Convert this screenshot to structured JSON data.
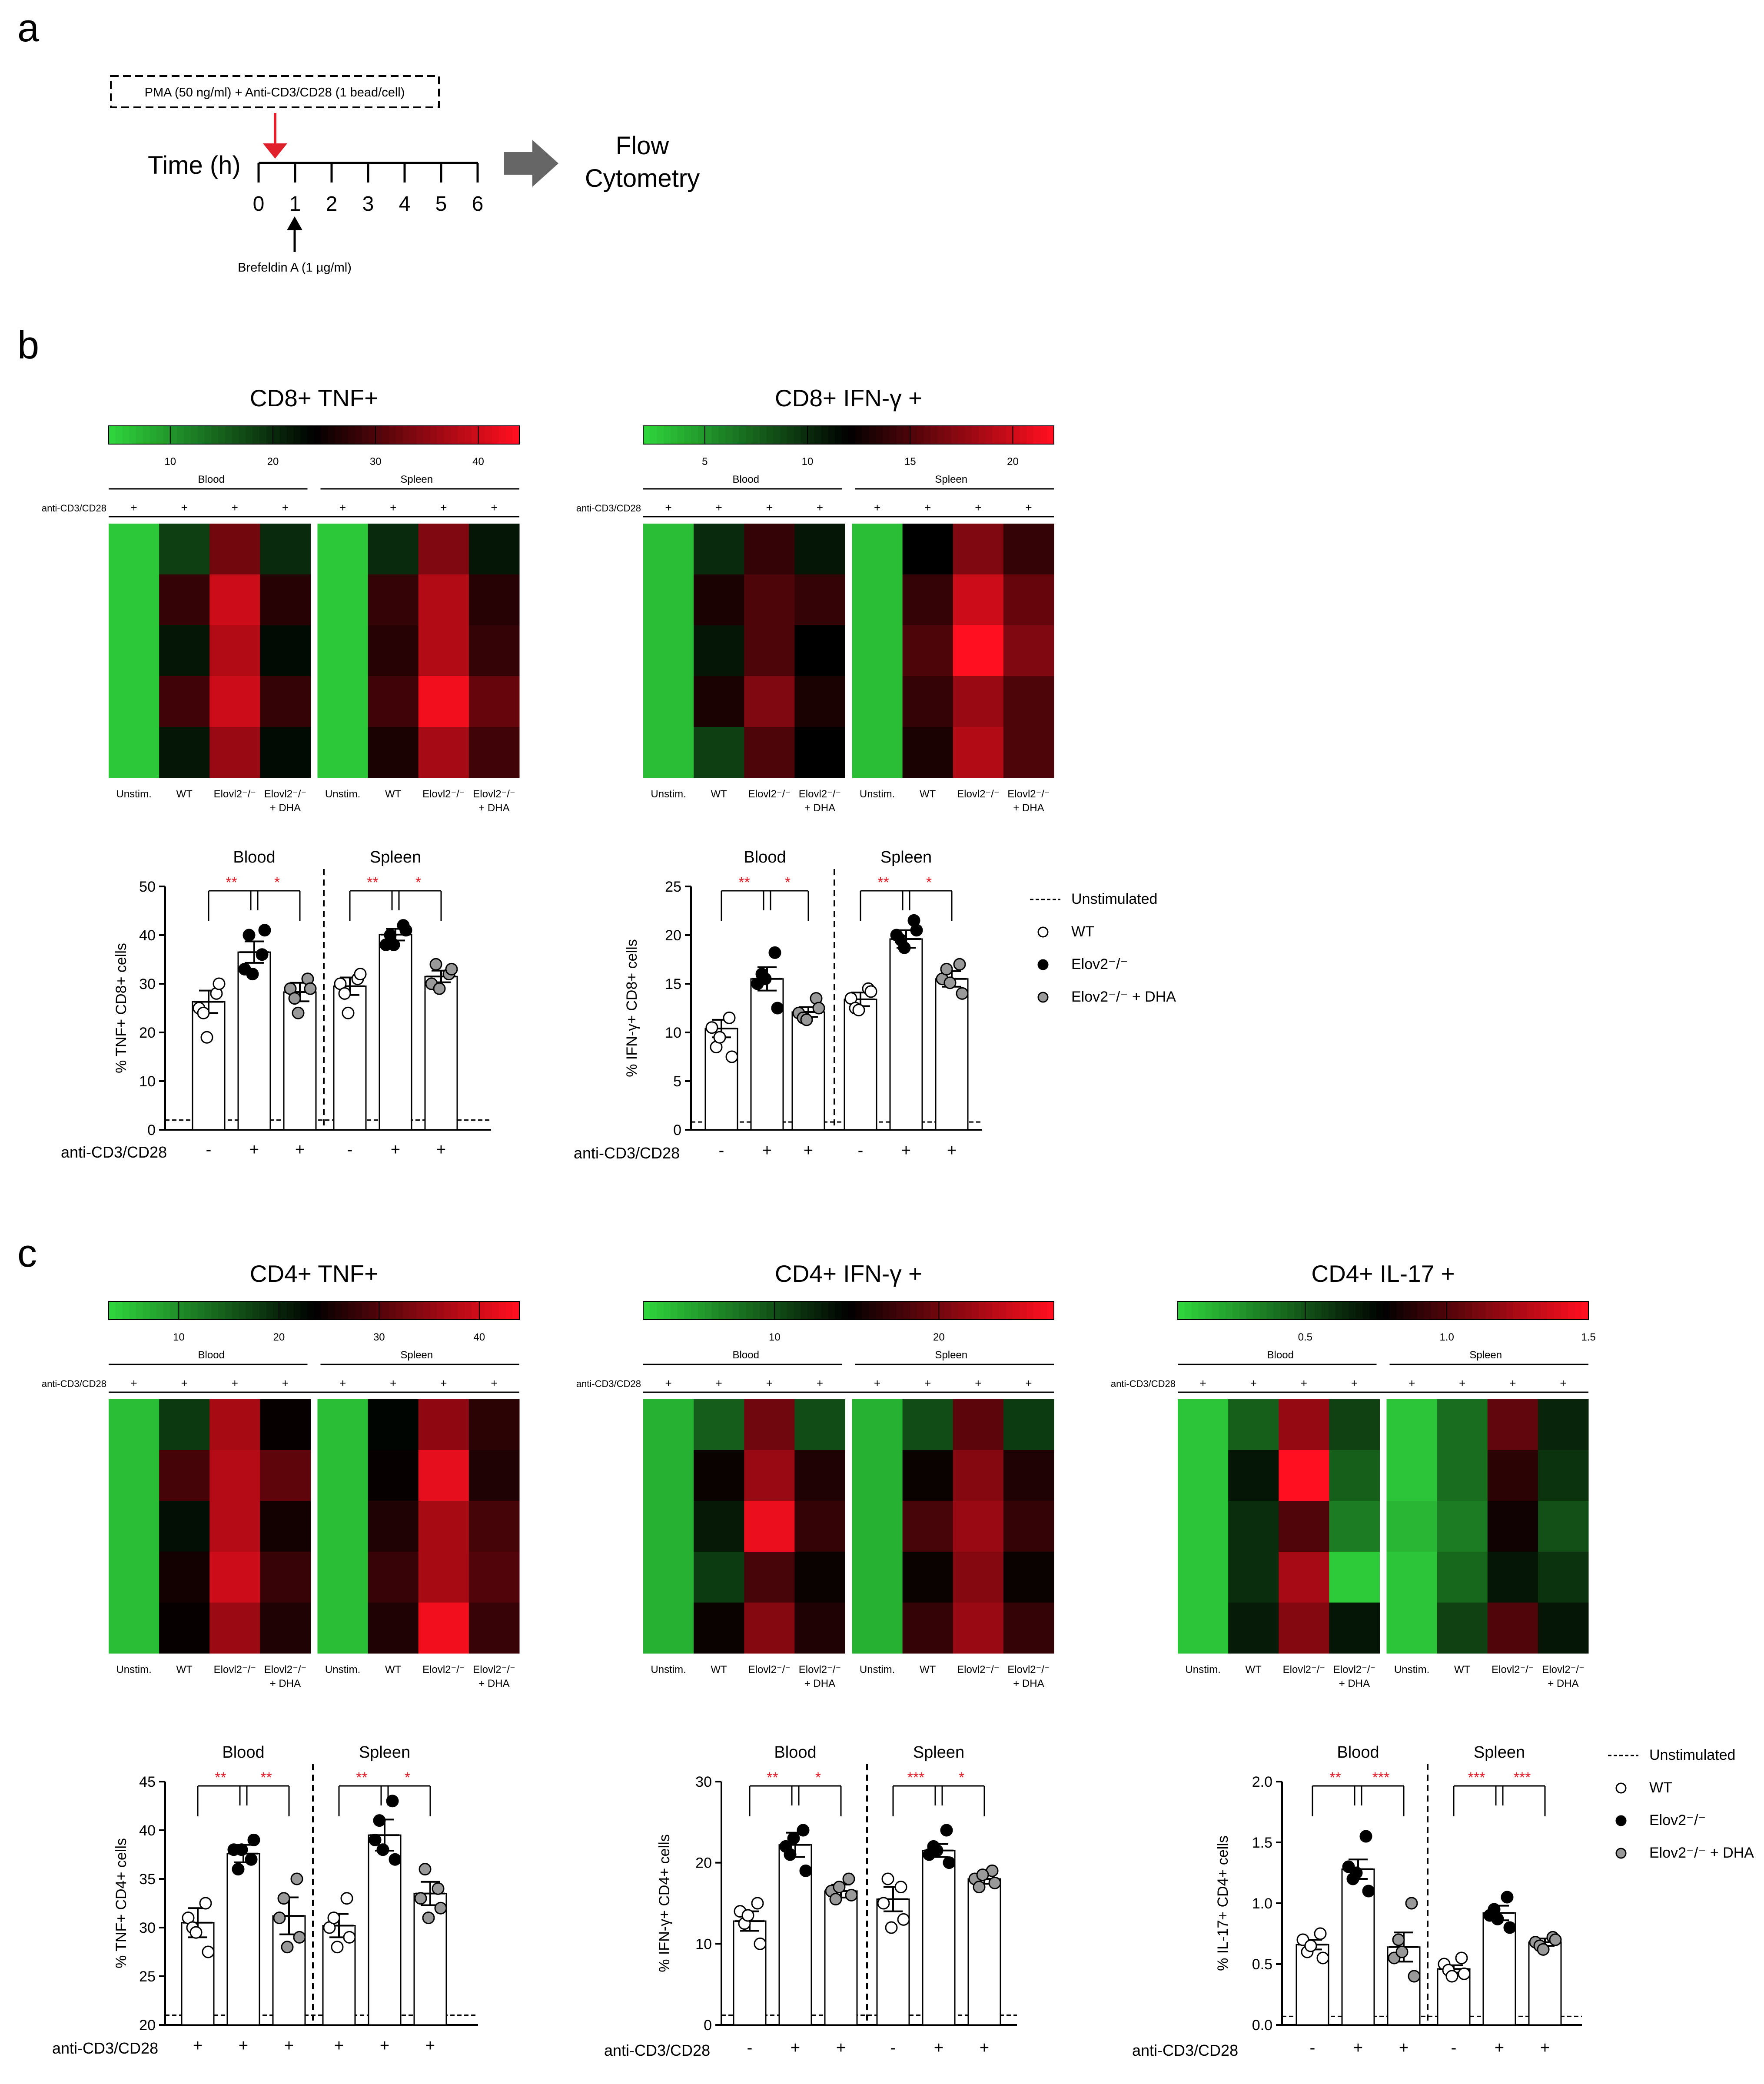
{
  "panels": {
    "a": "a",
    "b": "b",
    "c": "c"
  },
  "timeline": {
    "stim_label": "PMA (50 ng/ml) + Anti-CD3/CD28 (1 bead/cell)",
    "time_label": "Time (h)",
    "ticks": [
      "0",
      "1",
      "2",
      "3",
      "4",
      "5",
      "6"
    ],
    "brefeldin_label": "Brefeldin A (1 µg/ml)",
    "output_lines": [
      "Flow",
      "Cytometry"
    ],
    "colors": {
      "stim_arrow": "#e0202a",
      "process_arrow": "#666666"
    }
  },
  "heatmap_common": {
    "row_label": "anti-CD3/CD28",
    "signs": [
      "+",
      "+",
      "+",
      "+",
      "+",
      "+",
      "+",
      "+"
    ],
    "groups": [
      "Blood",
      "Spleen"
    ],
    "columns": [
      "Unstim.",
      "WT",
      "Elovl2⁻/⁻",
      "Elovl2⁻/⁻\n+ DHA",
      "Unstim.",
      "WT",
      "Elovl2⁻/⁻",
      "Elovl2⁻/⁻\n+ DHA"
    ],
    "colorscale": [
      "#2fd33c",
      "#000000",
      "#ff0f1f"
    ]
  },
  "bar_common": {
    "groups": [
      "Blood",
      "Spleen"
    ],
    "stim_label": "anti-CD3/CD28",
    "colors": {
      "sig": "#e0202a",
      "WT": "#ffffff",
      "KO": "#000000",
      "DHA": "#999999"
    }
  },
  "legends": {
    "b": [
      "Unstimulated",
      "WT",
      "Elov2⁻/⁻",
      "Elov2⁻/⁻ + DHA"
    ],
    "c": [
      "Unstimulated",
      "WT",
      "Elov2⁻/⁻",
      "Elov2⁻/⁻ + DHA"
    ]
  },
  "chart_data": [
    {
      "type": "heatmap",
      "title": "CD8+ TNF+",
      "scale_range": [
        4,
        44
      ],
      "scale_ticks": [
        10,
        20,
        30,
        40
      ],
      "values": [
        [
          5,
          18,
          33,
          20,
          5,
          20,
          34,
          22
        ],
        [
          5,
          28,
          40,
          27,
          5,
          28,
          38,
          27
        ],
        [
          5,
          22,
          38,
          23,
          5,
          27,
          38,
          28
        ],
        [
          5,
          29,
          40,
          28,
          5,
          29,
          43,
          32
        ],
        [
          5,
          22,
          36,
          23,
          5,
          26,
          37,
          29
        ]
      ]
    },
    {
      "type": "heatmap",
      "title": "CD8+ IFN-γ +",
      "scale_range": [
        2,
        22
      ],
      "scale_ticks": [
        5,
        10,
        15,
        20
      ],
      "values": [
        [
          3,
          10,
          14,
          11,
          3,
          12,
          17,
          14
        ],
        [
          3,
          13,
          15,
          14,
          3,
          14,
          20,
          16
        ],
        [
          3,
          11,
          15,
          12,
          3,
          15,
          22,
          17
        ],
        [
          3,
          13,
          17,
          13,
          3,
          14,
          18,
          15
        ],
        [
          3,
          9,
          15,
          12,
          3,
          13,
          19,
          15
        ]
      ]
    },
    {
      "type": "heatmap",
      "title": "CD4+ TNF+",
      "scale_range": [
        3,
        44
      ],
      "scale_ticks": [
        10,
        20,
        30,
        40
      ],
      "values": [
        [
          5,
          18,
          37,
          24,
          5,
          23,
          35,
          27
        ],
        [
          5,
          29,
          38,
          31,
          5,
          24,
          42,
          26
        ],
        [
          5,
          22,
          38,
          25,
          5,
          26,
          37,
          29
        ],
        [
          5,
          25,
          40,
          28,
          5,
          28,
          37,
          30
        ],
        [
          5,
          24,
          36,
          26,
          5,
          26,
          43,
          28
        ]
      ]
    },
    {
      "type": "heatmap",
      "title": "CD4+ IFN-γ +",
      "scale_range": [
        2,
        27
      ],
      "scale_ticks": [
        10,
        20
      ],
      "values": [
        [
          4,
          9,
          20,
          10,
          4,
          10,
          19,
          11
        ],
        [
          4,
          15,
          22,
          16,
          4,
          15,
          21,
          16
        ],
        [
          4,
          13,
          26,
          17,
          4,
          18,
          22,
          17
        ],
        [
          4,
          11,
          18,
          15,
          4,
          15,
          21,
          15
        ],
        [
          4,
          15,
          21,
          16,
          4,
          17,
          22,
          17
        ]
      ]
    },
    {
      "type": "heatmap",
      "title": "CD4+ IL-17 +",
      "scale_range": [
        0.05,
        1.5
      ],
      "scale_ticks": [
        0.5,
        1.0,
        1.5
      ],
      "values": [
        [
          0.1,
          0.45,
          1.2,
          0.55,
          0.1,
          0.4,
          1.05,
          0.65
        ],
        [
          0.1,
          0.7,
          1.5,
          0.45,
          0.1,
          0.4,
          0.9,
          0.6
        ],
        [
          0.1,
          0.62,
          1.0,
          0.35,
          0.15,
          0.35,
          0.82,
          0.5
        ],
        [
          0.1,
          0.62,
          1.25,
          0.08,
          0.1,
          0.42,
          0.7,
          0.6
        ],
        [
          0.1,
          0.68,
          1.15,
          0.7,
          0.1,
          0.55,
          1.0,
          0.7
        ]
      ]
    },
    {
      "type": "scatter",
      "ylabel": "% TNF+ CD8+ cells",
      "ylim": [
        0,
        50
      ],
      "yticks": [
        0,
        10,
        20,
        30,
        40,
        50
      ],
      "baseline": 2,
      "stim": [
        "-",
        "+",
        "+",
        "-",
        "+",
        "+"
      ],
      "bars": [
        {
          "group": 0,
          "kind": "WT",
          "mean": 26.3,
          "sem": 2.3,
          "points": [
            25,
            28,
            24,
            30,
            19
          ]
        },
        {
          "group": 0,
          "kind": "KO",
          "mean": 36.5,
          "sem": 2.2,
          "points": [
            33,
            36,
            40,
            41,
            32
          ]
        },
        {
          "group": 0,
          "kind": "DHA",
          "mean": 28.3,
          "sem": 1.9,
          "points": [
            29,
            31,
            27,
            29,
            24
          ]
        },
        {
          "group": 1,
          "kind": "WT",
          "mean": 29.5,
          "sem": 1.8,
          "points": [
            30,
            31,
            28,
            32,
            24
          ]
        },
        {
          "group": 1,
          "kind": "KO",
          "mean": 40.1,
          "sem": 1.2,
          "points": [
            38,
            42,
            40,
            41,
            38
          ]
        },
        {
          "group": 1,
          "kind": "DHA",
          "mean": 31.5,
          "sem": 1.2,
          "points": [
            30,
            32,
            34,
            33,
            29
          ]
        }
      ],
      "sig": [
        {
          "group": 0,
          "labels": [
            "**",
            "*"
          ],
          "y": 48
        },
        {
          "group": 1,
          "labels": [
            "**",
            "*"
          ],
          "y": 48
        }
      ]
    },
    {
      "type": "scatter",
      "ylabel": "% IFN-γ+ CD8+ cells",
      "ylim": [
        0,
        25
      ],
      "yticks": [
        0,
        5,
        10,
        15,
        20,
        25
      ],
      "baseline": 0.8,
      "stim": [
        "-",
        "+",
        "+",
        "-",
        "+",
        "+"
      ],
      "bars": [
        {
          "group": 0,
          "kind": "WT",
          "mean": 10.4,
          "sem": 0.9,
          "points": [
            10.5,
            11.5,
            8.5,
            7.5,
            9.5
          ]
        },
        {
          "group": 0,
          "kind": "KO",
          "mean": 15.5,
          "sem": 1.2,
          "points": [
            15,
            18.2,
            16,
            12.5,
            15.5
          ]
        },
        {
          "group": 0,
          "kind": "DHA",
          "mean": 12.1,
          "sem": 0.5,
          "points": [
            12,
            13.5,
            11.5,
            12.5,
            11.3
          ]
        },
        {
          "group": 1,
          "kind": "WT",
          "mean": 13.4,
          "sem": 0.7,
          "points": [
            13.5,
            14.5,
            12.5,
            14.2,
            12.3
          ]
        },
        {
          "group": 1,
          "kind": "KO",
          "mean": 19.6,
          "sem": 0.9,
          "points": [
            20,
            21.5,
            19.5,
            20.5,
            18.7
          ]
        },
        {
          "group": 1,
          "kind": "DHA",
          "mean": 15.5,
          "sem": 0.8,
          "points": [
            15.5,
            17,
            16.5,
            14,
            15.1
          ]
        }
      ],
      "sig": [
        {
          "group": 0,
          "labels": [
            "**",
            "*"
          ],
          "y": 24.5
        },
        {
          "group": 1,
          "labels": [
            "**",
            "*"
          ],
          "y": 24.5
        }
      ]
    },
    {
      "type": "scatter",
      "ylabel": "% TNF+ CD4+ cells",
      "ylim": [
        20,
        45
      ],
      "yticks": [
        20,
        25,
        30,
        35,
        40,
        45
      ],
      "baseline": 21,
      "stim": [
        "+",
        "+",
        "+",
        "+",
        "+",
        "+"
      ],
      "bars": [
        {
          "group": 0,
          "kind": "WT",
          "mean": 30.5,
          "sem": 1.5,
          "points": [
            31,
            32.5,
            30,
            27.5,
            29.5
          ]
        },
        {
          "group": 0,
          "kind": "KO",
          "mean": 37.6,
          "sem": 0.9,
          "points": [
            38,
            37,
            36,
            39,
            38
          ]
        },
        {
          "group": 0,
          "kind": "DHA",
          "mean": 31.2,
          "sem": 1.9,
          "points": [
            31,
            35,
            33,
            29,
            28
          ]
        },
        {
          "group": 1,
          "kind": "WT",
          "mean": 30.2,
          "sem": 1.2,
          "points": [
            30,
            33,
            31,
            29,
            28
          ]
        },
        {
          "group": 1,
          "kind": "KO",
          "mean": 39.5,
          "sem": 1.6,
          "points": [
            39,
            43,
            41,
            37,
            38
          ]
        },
        {
          "group": 1,
          "kind": "DHA",
          "mean": 33.5,
          "sem": 1.2,
          "points": [
            33,
            34,
            36,
            32,
            31
          ]
        }
      ],
      "sig": [
        {
          "group": 0,
          "labels": [
            "**",
            "**"
          ],
          "y": 44
        },
        {
          "group": 1,
          "labels": [
            "**",
            "*"
          ],
          "y": 44
        }
      ]
    },
    {
      "type": "scatter",
      "ylabel": "% IFN-γ+ CD4+ cells",
      "ylim": [
        0,
        30
      ],
      "yticks": [
        0,
        10,
        20,
        30
      ],
      "baseline": 1.2,
      "stim": [
        "-",
        "+",
        "+",
        "-",
        "+",
        "+"
      ],
      "bars": [
        {
          "group": 0,
          "kind": "WT",
          "mean": 12.8,
          "sem": 1.2,
          "points": [
            14,
            15,
            12.5,
            10,
            13.5
          ]
        },
        {
          "group": 0,
          "kind": "KO",
          "mean": 22.2,
          "sem": 1.5,
          "points": [
            22,
            24,
            21,
            19,
            23
          ]
        },
        {
          "group": 0,
          "kind": "DHA",
          "mean": 16.5,
          "sem": 0.8,
          "points": [
            16.5,
            18,
            15.5,
            16,
            17
          ]
        },
        {
          "group": 1,
          "kind": "WT",
          "mean": 15.5,
          "sem": 1.5,
          "points": [
            15,
            17,
            18,
            13,
            12
          ]
        },
        {
          "group": 1,
          "kind": "KO",
          "mean": 21.5,
          "sem": 0.8,
          "points": [
            21,
            24,
            22,
            20,
            21.5
          ]
        },
        {
          "group": 1,
          "kind": "DHA",
          "mean": 18,
          "sem": 0.6,
          "points": [
            18,
            19,
            17,
            17.5,
            18.5
          ]
        }
      ],
      "sig": [
        {
          "group": 0,
          "labels": [
            "**",
            "*"
          ],
          "y": 29
        },
        {
          "group": 1,
          "labels": [
            "***",
            "*"
          ],
          "y": 29
        }
      ]
    },
    {
      "type": "scatter",
      "ylabel": "% IL-17+ CD4+ cells",
      "ylim": [
        0,
        2.0
      ],
      "yticks": [
        0,
        0.5,
        1.0,
        1.5,
        2.0
      ],
      "baseline": 0.07,
      "stim": [
        "-",
        "+",
        "+",
        "-",
        "+",
        "+"
      ],
      "bars": [
        {
          "group": 0,
          "kind": "WT",
          "mean": 0.66,
          "sem": 0.04,
          "points": [
            0.7,
            0.75,
            0.6,
            0.55,
            0.65
          ]
        },
        {
          "group": 0,
          "kind": "KO",
          "mean": 1.28,
          "sem": 0.08,
          "points": [
            1.3,
            1.55,
            1.2,
            1.1,
            1.25
          ]
        },
        {
          "group": 0,
          "kind": "DHA",
          "mean": 0.64,
          "sem": 0.12,
          "points": [
            0.55,
            1.0,
            0.7,
            0.4,
            0.6
          ]
        },
        {
          "group": 1,
          "kind": "WT",
          "mean": 0.46,
          "sem": 0.03,
          "points": [
            0.5,
            0.55,
            0.45,
            0.42,
            0.4
          ]
        },
        {
          "group": 1,
          "kind": "KO",
          "mean": 0.92,
          "sem": 0.06,
          "points": [
            0.9,
            1.05,
            0.95,
            0.8,
            0.87
          ]
        },
        {
          "group": 1,
          "kind": "DHA",
          "mean": 0.68,
          "sem": 0.03,
          "points": [
            0.68,
            0.72,
            0.65,
            0.7,
            0.62
          ]
        }
      ],
      "sig": [
        {
          "group": 0,
          "labels": [
            "**",
            "***"
          ],
          "y": 1.9
        },
        {
          "group": 1,
          "labels": [
            "***",
            "***"
          ],
          "y": 1.75
        }
      ]
    }
  ]
}
